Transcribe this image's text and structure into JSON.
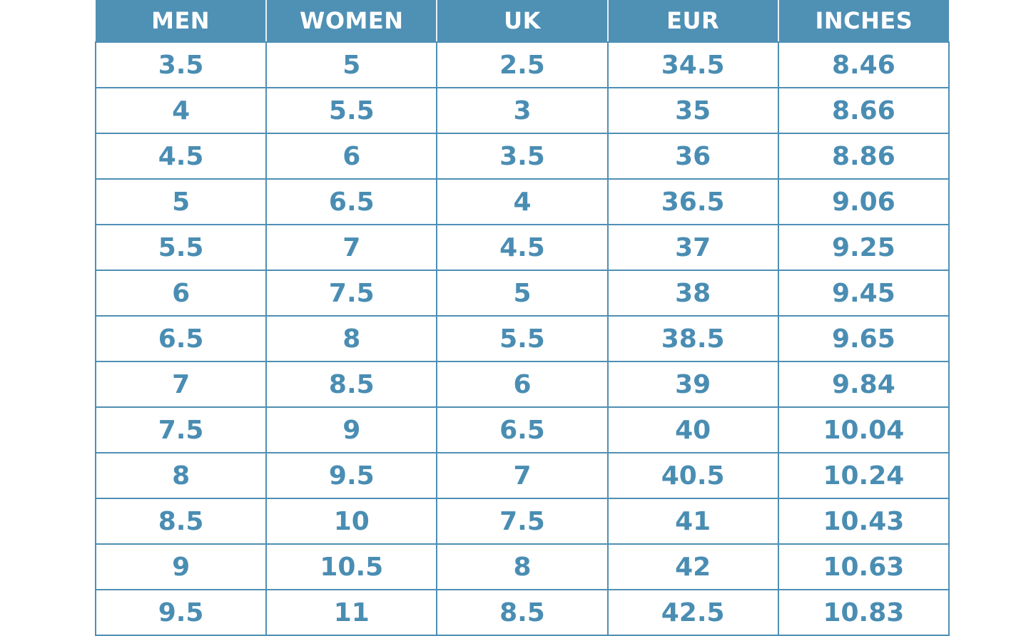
{
  "table": {
    "columns": [
      "MEN",
      "WOMEN",
      "UK",
      "EUR",
      "INCHES"
    ],
    "rows": [
      [
        "3.5",
        "5",
        "2.5",
        "34.5",
        "8.46"
      ],
      [
        "4",
        "5.5",
        "3",
        "35",
        "8.66"
      ],
      [
        "4.5",
        "6",
        "3.5",
        "36",
        "8.86"
      ],
      [
        "5",
        "6.5",
        "4",
        "36.5",
        "9.06"
      ],
      [
        "5.5",
        "7",
        "4.5",
        "37",
        "9.25"
      ],
      [
        "6",
        "7.5",
        "5",
        "38",
        "9.45"
      ],
      [
        "6.5",
        "8",
        "5.5",
        "38.5",
        "9.65"
      ],
      [
        "7",
        "8.5",
        "6",
        "39",
        "9.84"
      ],
      [
        "7.5",
        "9",
        "6.5",
        "40",
        "10.04"
      ],
      [
        "8",
        "9.5",
        "7",
        "40.5",
        "10.24"
      ],
      [
        "8.5",
        "10",
        "7.5",
        "41",
        "10.43"
      ],
      [
        "9",
        "10.5",
        "8",
        "42",
        "10.63"
      ],
      [
        "9.5",
        "11",
        "8.5",
        "42.5",
        "10.83"
      ]
    ]
  }
}
